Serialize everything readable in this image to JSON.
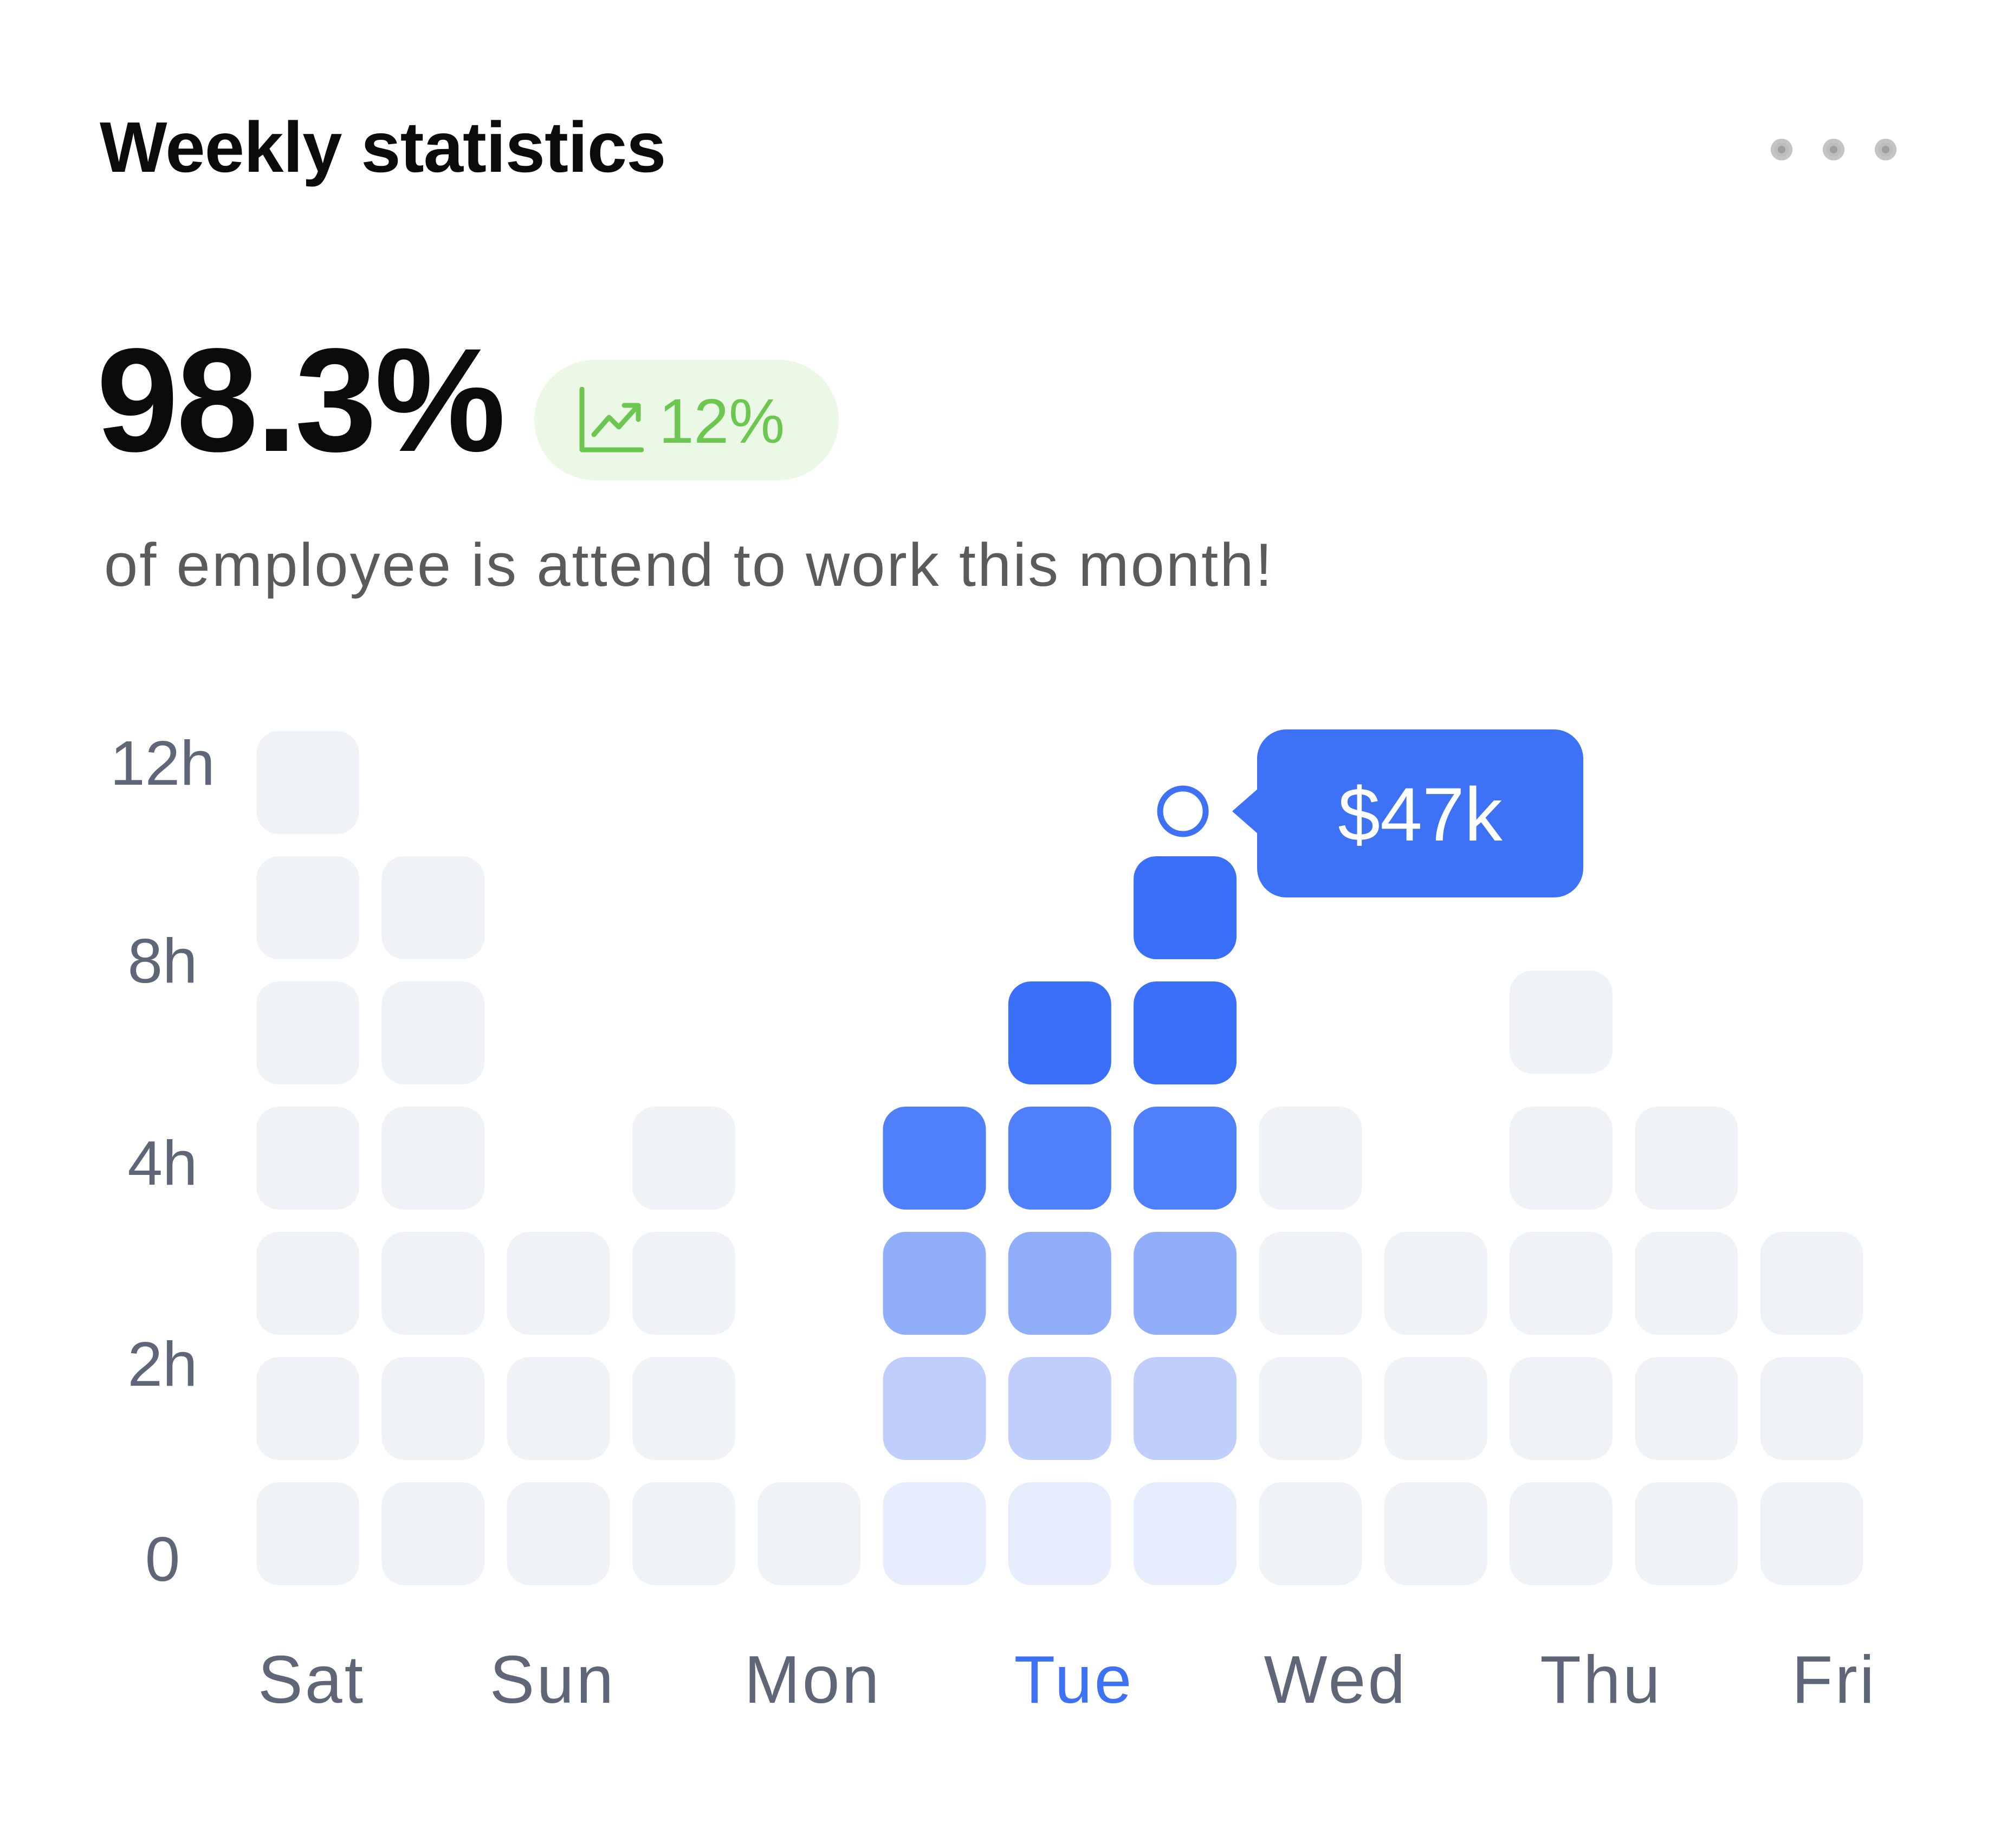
{
  "header": {
    "title": "Weekly statistics",
    "menu_icon": "more-horizontal-icon"
  },
  "summary": {
    "value": "98.3%",
    "badge": {
      "icon": "trend-up-icon",
      "text": "12%",
      "color": "#6bc750",
      "background": "#ecf8e6"
    },
    "description": "of employee is attend to work this month!"
  },
  "chart_data": {
    "type": "bar",
    "categories": [
      "Sat",
      "Sun",
      "Mon",
      "Tue",
      "Wed",
      "Thu",
      "Fri"
    ],
    "y_tick_labels": [
      "0",
      "2h",
      "4h",
      "8h",
      "12h"
    ],
    "columns": [
      {
        "day": "Sat",
        "cells": 7
      },
      {
        "day": "",
        "cells": 6
      },
      {
        "day": "Sun",
        "cells": 3
      },
      {
        "day": "",
        "cells": 4
      },
      {
        "day": "Mon",
        "cells": 1
      },
      {
        "day": "",
        "cells": 4
      },
      {
        "day": "Tue",
        "cells": 5
      },
      {
        "day": "",
        "cells": 6
      },
      {
        "day": "Wed",
        "cells": 4
      },
      {
        "day": "",
        "cells": 3
      },
      {
        "day": "Thu",
        "cells": 5
      },
      {
        "day": "",
        "cells": 4
      },
      {
        "day": "Fri",
        "cells": 3
      }
    ],
    "highlighted_day": "Tue",
    "highlighted_columns": [
      5,
      6,
      7
    ],
    "tooltip": {
      "text": "$47k",
      "column": 7
    },
    "colors": {
      "inactive": "#eff2f6",
      "level_1": "#e6edfd",
      "level_2": "#bfcefd",
      "level_3": "#91aefb",
      "level_4": "#4f7ffb",
      "level_5": "#3a6ffa",
      "tooltip": "#3d72f7",
      "axis_label": "#5f6677",
      "highlight_label": "#3d72f7"
    },
    "grid": false
  }
}
